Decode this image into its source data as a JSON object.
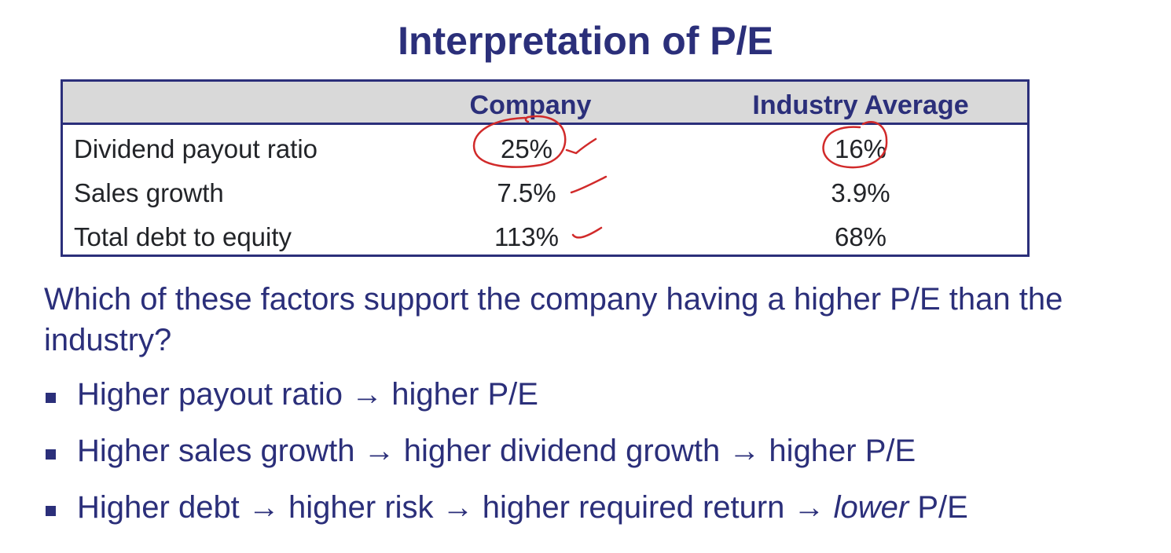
{
  "slide": {
    "title": "Interpretation of P/E",
    "table": {
      "headers": [
        "",
        "Company",
        "Industry Average"
      ],
      "rows": [
        {
          "label": "Dividend payout ratio",
          "company": "25%",
          "industry": "16%"
        },
        {
          "label": "Sales growth",
          "company": "7.5%",
          "industry": "3.9%"
        },
        {
          "label": "Total debt to equity",
          "company": "113%",
          "industry": "68%"
        }
      ]
    },
    "question": "Which of these factors support the company having a higher P/E than the industry?",
    "bullets": [
      {
        "text": "Higher payout ratio → higher P/E"
      },
      {
        "text": "Higher sales growth → higher dividend growth → higher P/E"
      },
      {
        "prefix": "Higher debt → higher risk → higher required return → ",
        "emphasis": "lower",
        "suffix": " P/E"
      }
    ],
    "colors": {
      "heading": "#2b2f7a",
      "body_text": "#222428",
      "header_fill": "#d9d9d9",
      "annotation_ink": "#d12a2a"
    }
  }
}
